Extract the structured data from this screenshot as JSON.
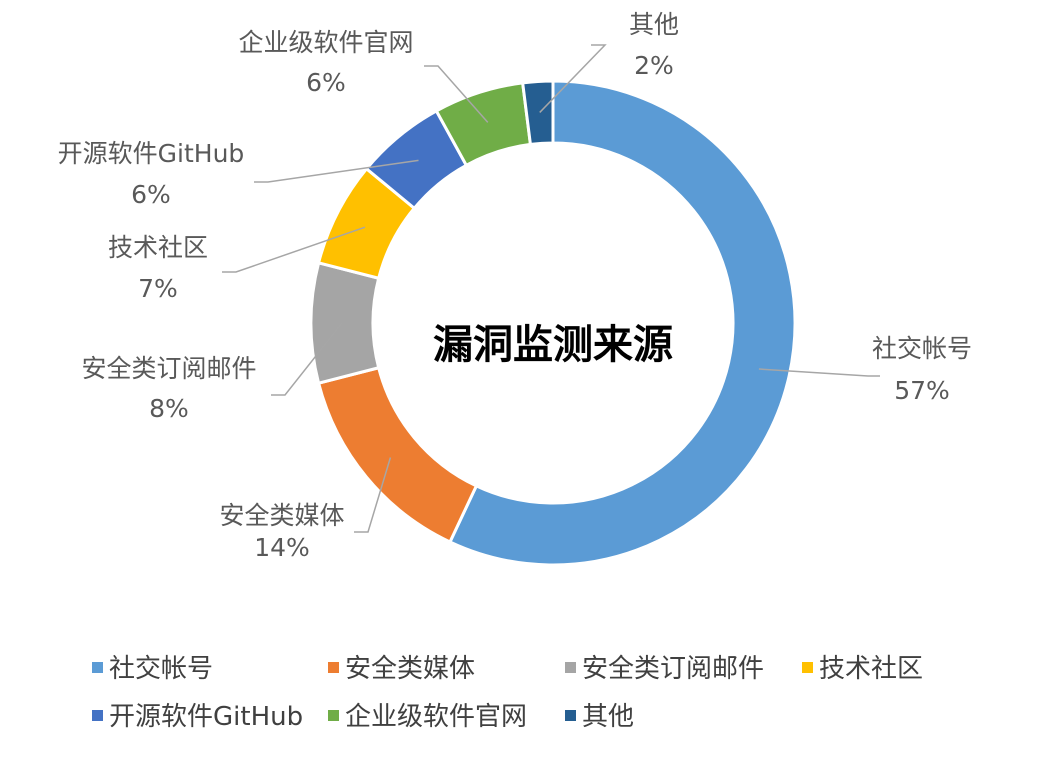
{
  "chart_data": {
    "type": "pie",
    "title": "漏洞监测来源",
    "donut": true,
    "legend_position": "bottom",
    "series": [
      {
        "name": "社交帐号",
        "value": 57,
        "color": "#5B9BD5"
      },
      {
        "name": "安全类媒体",
        "value": 14,
        "color": "#ED7D31"
      },
      {
        "name": "安全类订阅邮件",
        "value": 8,
        "color": "#A5A5A5"
      },
      {
        "name": "技术社区",
        "value": 7,
        "color": "#FFC000"
      },
      {
        "name": "开源软件GitHub",
        "value": 6,
        "color": "#4472C4"
      },
      {
        "name": "企业级软件官网",
        "value": 6,
        "color": "#70AD47"
      },
      {
        "name": "其他",
        "value": 2,
        "color": "#255E91"
      }
    ]
  }
}
